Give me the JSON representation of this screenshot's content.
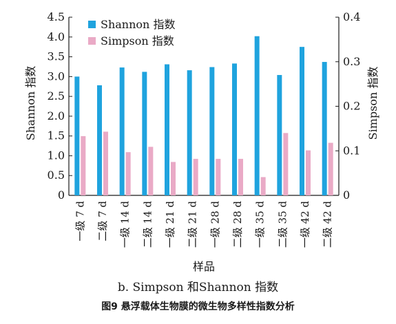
{
  "chart_data": {
    "type": "bar",
    "categories": [
      "一级 7 d",
      "二级 7 d",
      "一级 14 d",
      "二级 14 d",
      "一级 21 d",
      "二级 21 d",
      "一级 28 d",
      "二级 28 d",
      "一级 35 d",
      "二级 35 d",
      "一级 42 d",
      "二级 42 d"
    ],
    "series": [
      {
        "name": "Shannon 指数",
        "axis": "left",
        "color": "#1fa3de",
        "values": [
          3.0,
          2.78,
          3.23,
          3.12,
          3.31,
          3.16,
          3.24,
          3.33,
          4.02,
          3.04,
          3.75,
          3.37
        ]
      },
      {
        "name": "Simpson 指数",
        "axis": "right",
        "color": "#eaaac6",
        "values": [
          0.133,
          0.143,
          0.097,
          0.109,
          0.075,
          0.082,
          0.082,
          0.082,
          0.041,
          0.14,
          0.101,
          0.118
        ]
      }
    ],
    "xlabel": "样品",
    "ylabel": "Shannon 指数",
    "y2label": "Simpson 指数",
    "ylim": [
      0,
      4.5
    ],
    "y2lim": [
      0,
      0.4
    ],
    "yticks": [
      "0",
      "0.5",
      "1.0",
      "1.5",
      "2.0",
      "2.5",
      "3.0",
      "3.5",
      "4.0",
      "4.5"
    ],
    "y2ticks": [
      "0",
      "0.1",
      "0.2",
      "0.3",
      "0.4"
    ],
    "legend": "top-left",
    "grid": false
  },
  "subcaption": "b. Simpson 和Shannon 指数",
  "figcaption": "图9  悬浮载体生物膜的微生物多样性指数分析"
}
